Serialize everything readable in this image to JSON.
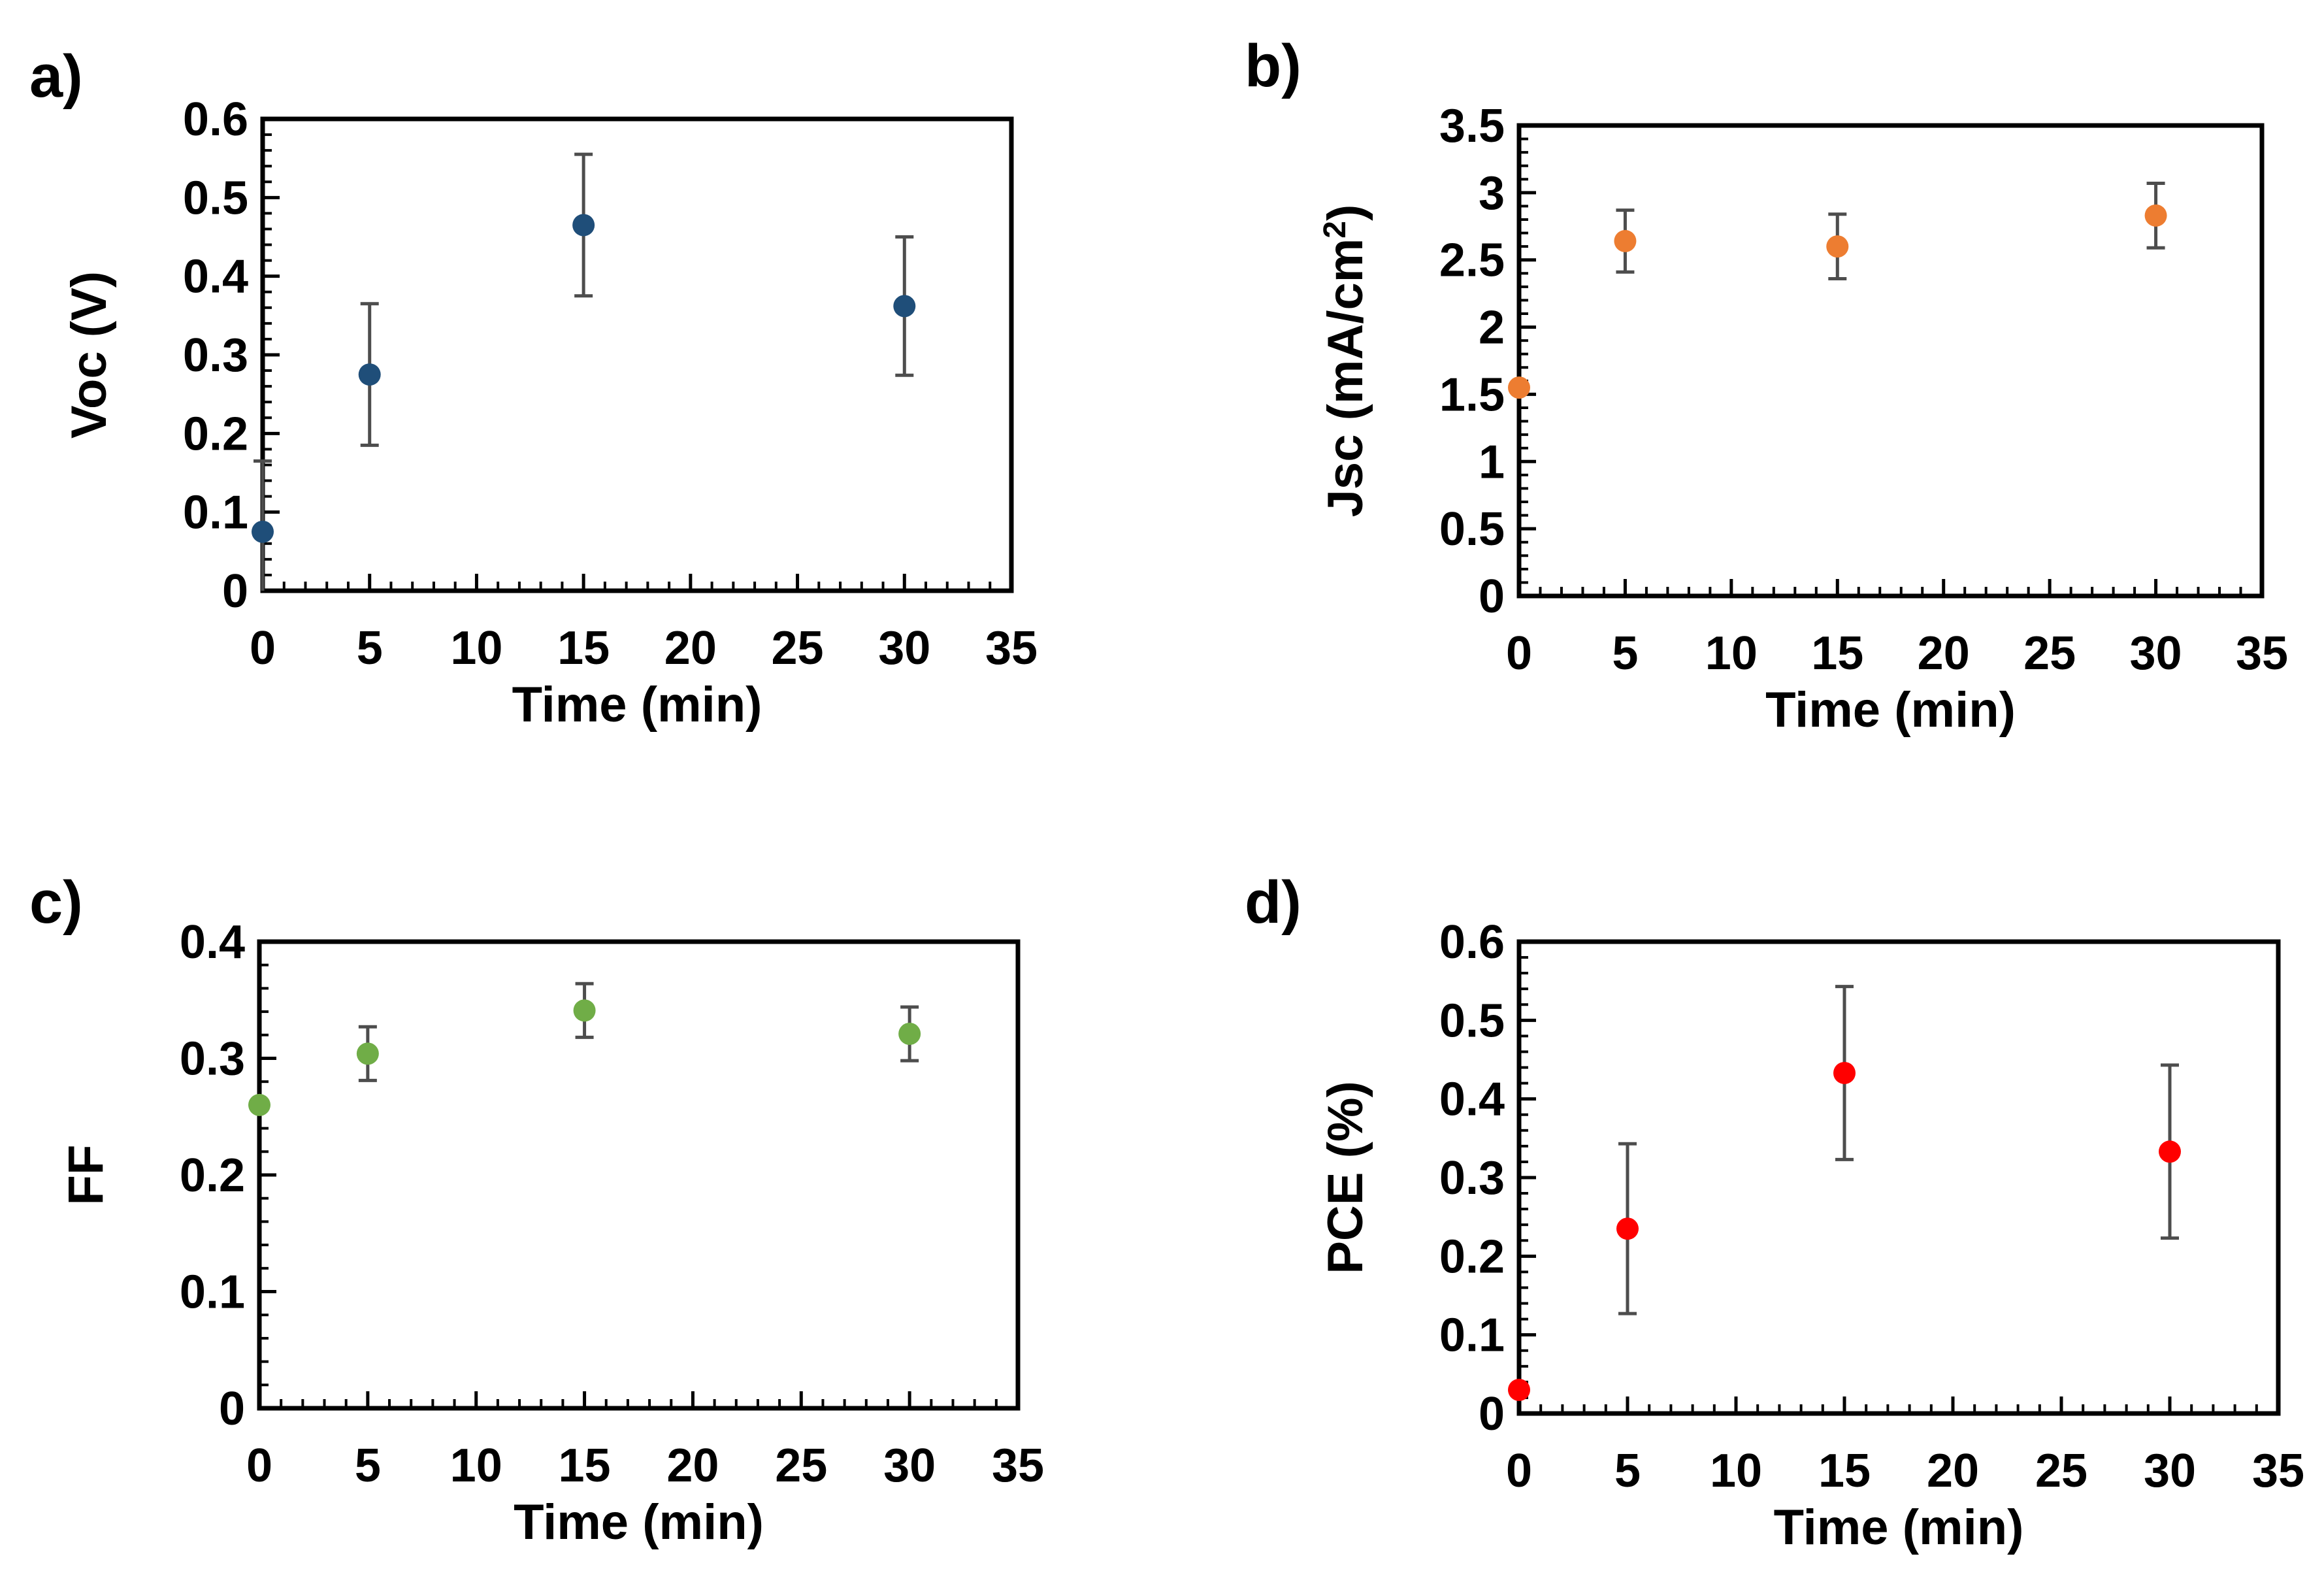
{
  "chart_data": [
    {
      "panel": "a)",
      "type": "scatter",
      "x": [
        0,
        5,
        15,
        30
      ],
      "y": [
        0.075,
        0.275,
        0.465,
        0.362
      ],
      "error": [
        0.09,
        0.09,
        0.09,
        0.088
      ],
      "xlabel": "Time (min)",
      "ylabel": "Voc (V)",
      "xlim": [
        0,
        35
      ],
      "ylim": [
        0,
        0.6
      ],
      "xticks": [
        0,
        5,
        10,
        15,
        20,
        25,
        30,
        35
      ],
      "xtick_labels": [
        "0",
        "5",
        "10",
        "15",
        "20",
        "25",
        "30",
        "35"
      ],
      "yticks": [
        0,
        0.1,
        0.2,
        0.3,
        0.4,
        0.5,
        0.6
      ],
      "ytick_labels": [
        "0",
        "0.1",
        "0.2",
        "0.3",
        "0.4",
        "0.5",
        "0.6"
      ],
      "color": "#1f4e79",
      "grid": false
    },
    {
      "panel": "b)",
      "type": "scatter",
      "x": [
        0,
        5,
        15,
        30
      ],
      "y": [
        1.55,
        2.64,
        2.6,
        2.83
      ],
      "error": [
        0.0,
        0.23,
        0.24,
        0.24
      ],
      "xlabel": "Time (min)",
      "ylabel": "Jsc (mA/cm",
      "ylabel_superscript": "2",
      "ylabel_suffix": ")",
      "xlim": [
        0,
        35
      ],
      "ylim": [
        0,
        3.5
      ],
      "xticks": [
        0,
        5,
        10,
        15,
        20,
        25,
        30,
        35
      ],
      "xtick_labels": [
        "0",
        "5",
        "10",
        "15",
        "20",
        "25",
        "30",
        "35"
      ],
      "yticks": [
        0,
        0.5,
        1,
        1.5,
        2,
        2.5,
        3,
        3.5
      ],
      "ytick_labels": [
        "0",
        "0.5",
        "1",
        "1.5",
        "2",
        "2.5",
        "3",
        "3.5"
      ],
      "color": "#ed7d31",
      "grid": false
    },
    {
      "panel": "c)",
      "type": "scatter",
      "x": [
        0,
        5,
        15,
        30
      ],
      "y": [
        0.26,
        0.304,
        0.341,
        0.321
      ],
      "error": [
        0.0,
        0.023,
        0.023,
        0.023
      ],
      "xlabel": "Time (min)",
      "ylabel": "FF",
      "xlim": [
        0,
        35
      ],
      "ylim": [
        0,
        0.4
      ],
      "xticks": [
        0,
        5,
        10,
        15,
        20,
        25,
        30,
        35
      ],
      "xtick_labels": [
        "0",
        "5",
        "10",
        "15",
        "20",
        "25",
        "30",
        "35"
      ],
      "yticks": [
        0,
        0.1,
        0.2,
        0.3,
        0.4
      ],
      "ytick_labels": [
        "0",
        "0.1",
        "0.2",
        "0.3",
        "0.4"
      ],
      "color": "#70ad47",
      "grid": false
    },
    {
      "panel": "d)",
      "type": "scatter",
      "x": [
        0,
        5,
        15,
        30
      ],
      "y": [
        0.03,
        0.235,
        0.433,
        0.333
      ],
      "error": [
        0.0,
        0.108,
        0.11,
        0.11
      ],
      "xlabel": "Time (min)",
      "ylabel": "PCE (%)",
      "xlim": [
        0,
        35
      ],
      "ylim": [
        0,
        0.6
      ],
      "xticks": [
        0,
        5,
        10,
        15,
        20,
        25,
        30,
        35
      ],
      "xtick_labels": [
        "0",
        "5",
        "10",
        "15",
        "20",
        "25",
        "30",
        "35"
      ],
      "yticks": [
        0,
        0.1,
        0.2,
        0.3,
        0.4,
        0.5,
        0.6
      ],
      "ytick_labels": [
        "0",
        "0.1",
        "0.2",
        "0.3",
        "0.4",
        "0.5",
        "0.6"
      ],
      "color": "#ff0000",
      "grid": false
    }
  ]
}
